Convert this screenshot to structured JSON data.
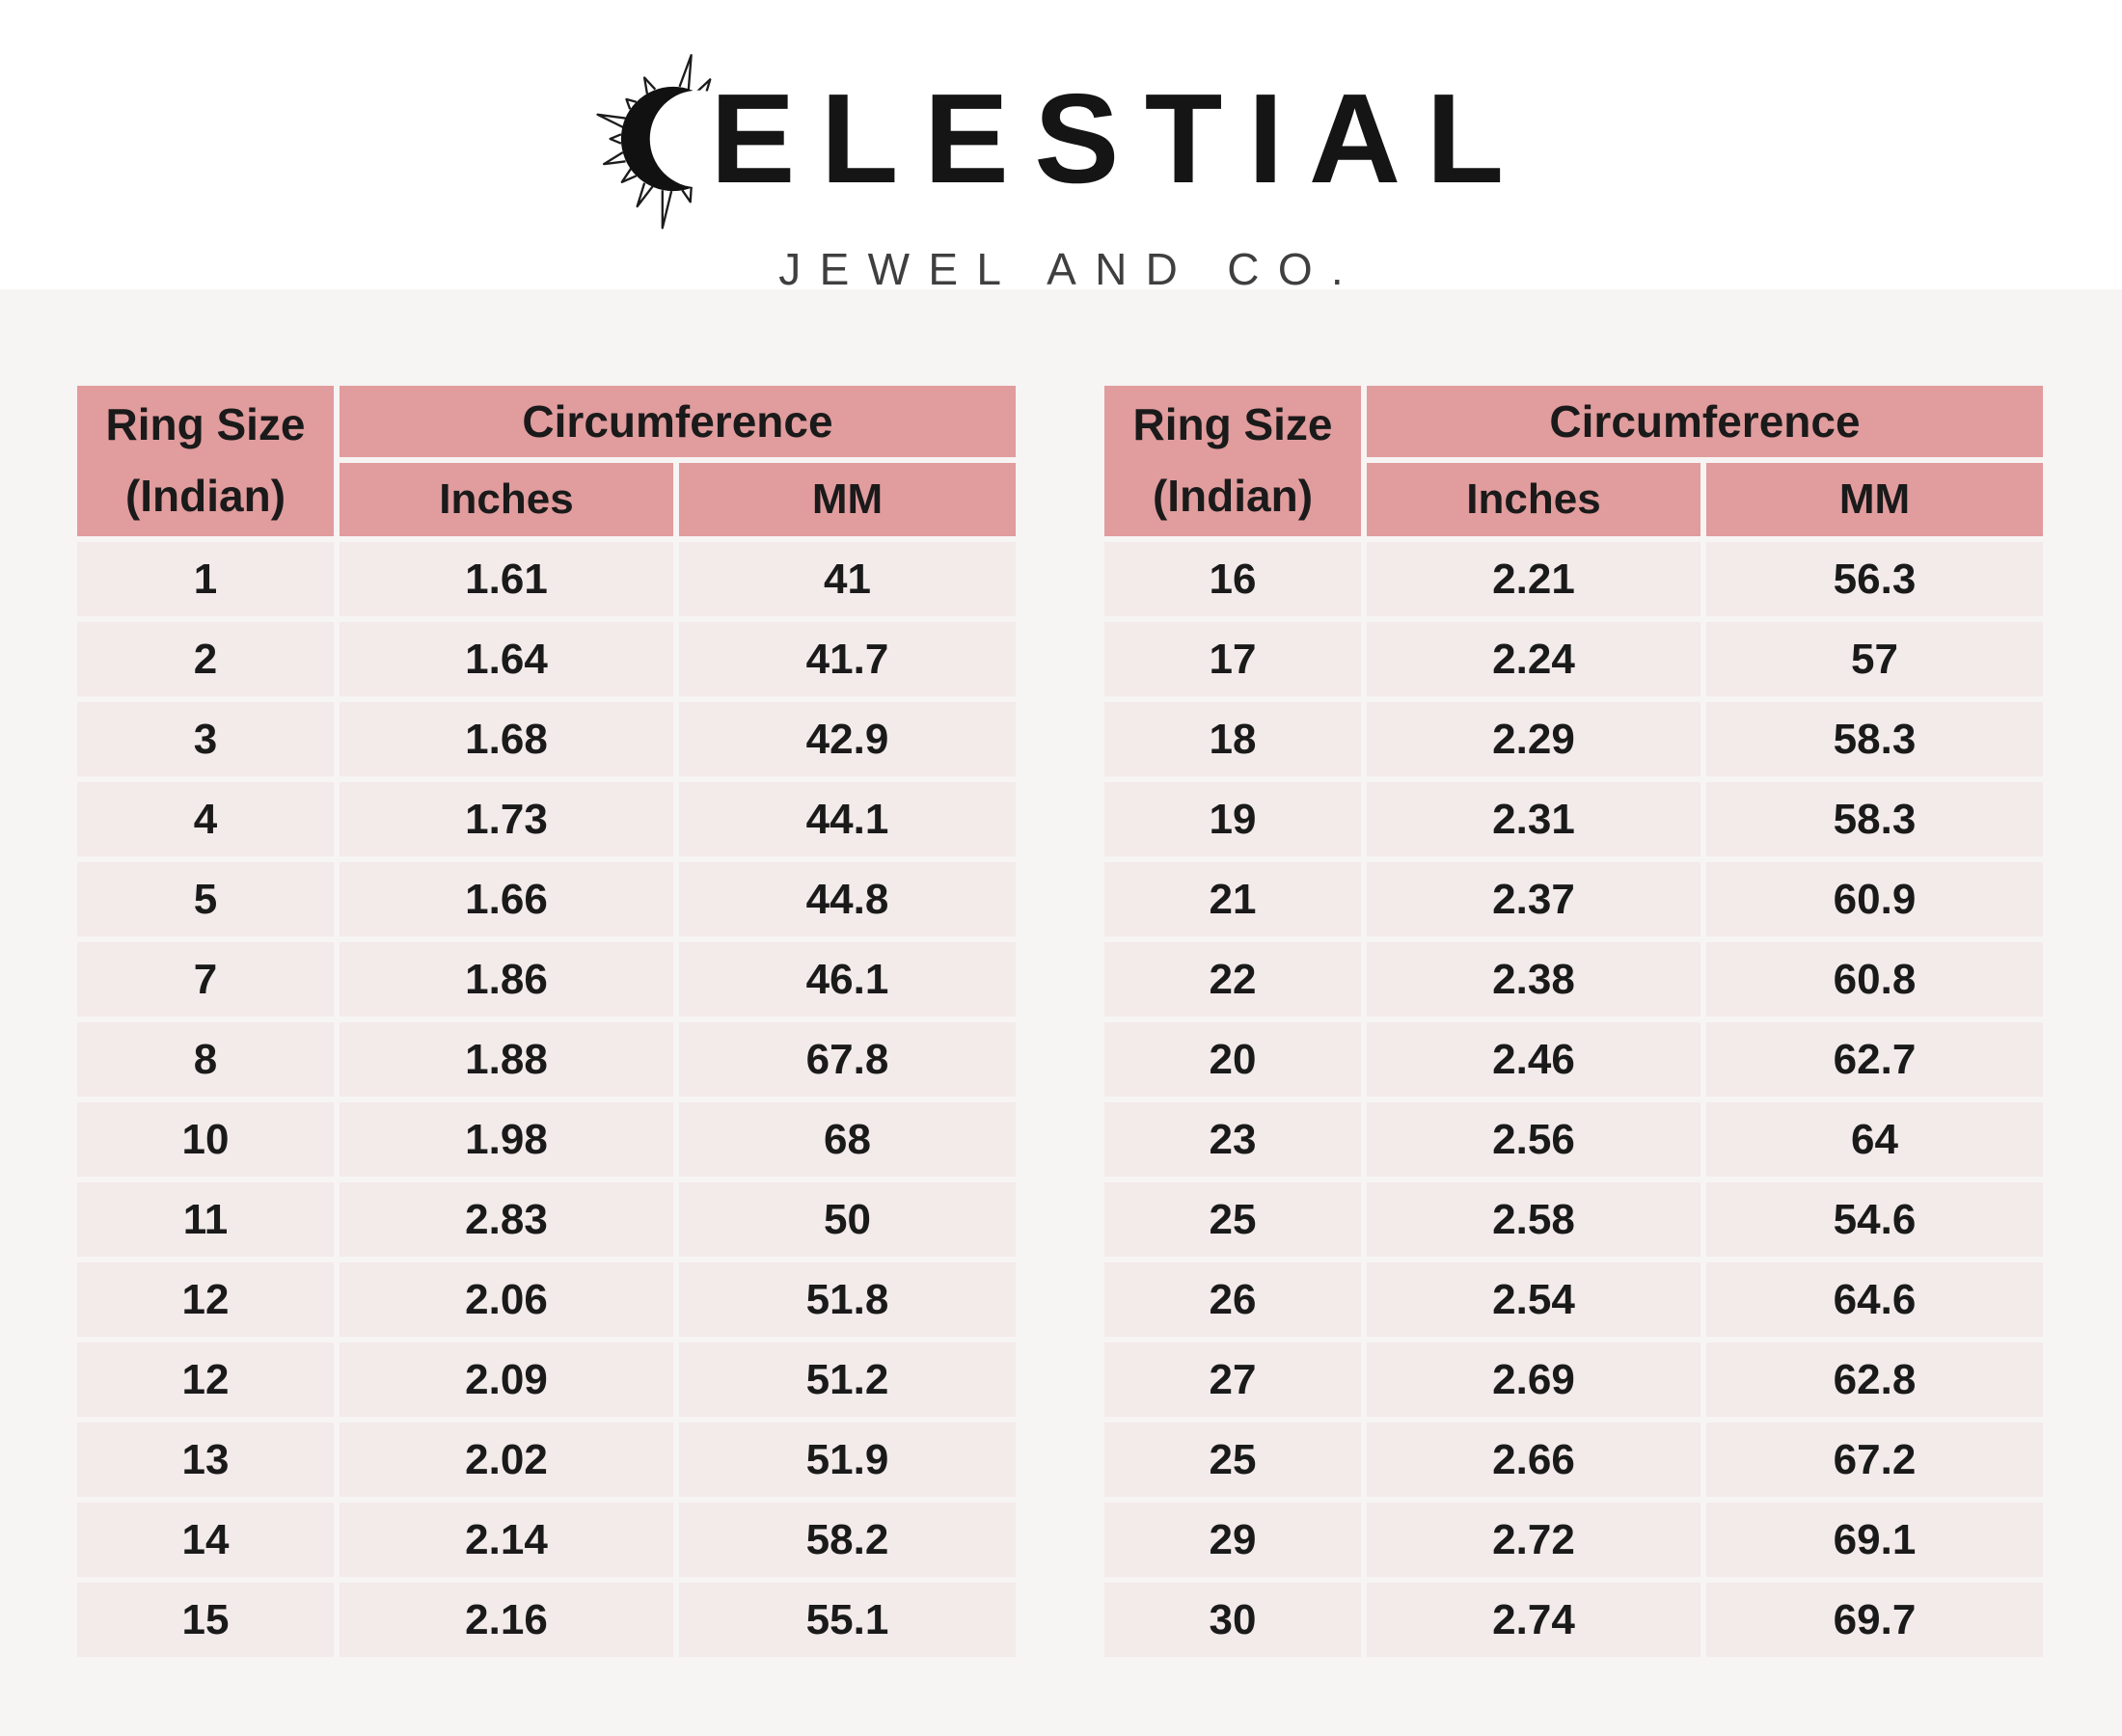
{
  "brand": {
    "name": "CELESTIAL",
    "wordmark_after_icon": "ELESTIAL",
    "subtitle": "JEWEL AND CO."
  },
  "table_headers": {
    "ring_size_line1": "Ring Size",
    "ring_size_line2": "(Indian)",
    "circumference": "Circumference",
    "inches": "Inches",
    "mm": "MM"
  },
  "colors": {
    "header_bg": "#e19c9d",
    "row_bg": "#f3eaea",
    "page_lower_bg": "#f7f4f4",
    "text": "#1a1a1a"
  },
  "chart_data": [
    {
      "type": "table",
      "title": "Ring Size (Indian) to Circumference — left table",
      "columns": [
        "Ring Size (Indian)",
        "Circumference Inches",
        "Circumference MM"
      ],
      "rows": [
        [
          "1",
          "1.61",
          "41"
        ],
        [
          "2",
          "1.64",
          "41.7"
        ],
        [
          "3",
          "1.68",
          "42.9"
        ],
        [
          "4",
          "1.73",
          "44.1"
        ],
        [
          "5",
          "1.66",
          "44.8"
        ],
        [
          "7",
          "1.86",
          "46.1"
        ],
        [
          "8",
          "1.88",
          "67.8"
        ],
        [
          "10",
          "1.98",
          "68"
        ],
        [
          "11",
          "2.83",
          "50"
        ],
        [
          "12",
          "2.06",
          "51.8"
        ],
        [
          "12",
          "2.09",
          "51.2"
        ],
        [
          "13",
          "2.02",
          "51.9"
        ],
        [
          "14",
          "2.14",
          "58.2"
        ],
        [
          "15",
          "2.16",
          "55.1"
        ]
      ]
    },
    {
      "type": "table",
      "title": "Ring Size (Indian) to Circumference — right table",
      "columns": [
        "Ring Size (Indian)",
        "Circumference Inches",
        "Circumference MM"
      ],
      "rows": [
        [
          "16",
          "2.21",
          "56.3"
        ],
        [
          "17",
          "2.24",
          "57"
        ],
        [
          "18",
          "2.29",
          "58.3"
        ],
        [
          "19",
          "2.31",
          "58.3"
        ],
        [
          "21",
          "2.37",
          "60.9"
        ],
        [
          "22",
          "2.38",
          "60.8"
        ],
        [
          "20",
          "2.46",
          "62.7"
        ],
        [
          "23",
          "2.56",
          "64"
        ],
        [
          "25",
          "2.58",
          "54.6"
        ],
        [
          "26",
          "2.54",
          "64.6"
        ],
        [
          "27",
          "2.69",
          "62.8"
        ],
        [
          "25",
          "2.66",
          "67.2"
        ],
        [
          "29",
          "2.72",
          "69.1"
        ],
        [
          "30",
          "2.74",
          "69.7"
        ]
      ]
    }
  ]
}
